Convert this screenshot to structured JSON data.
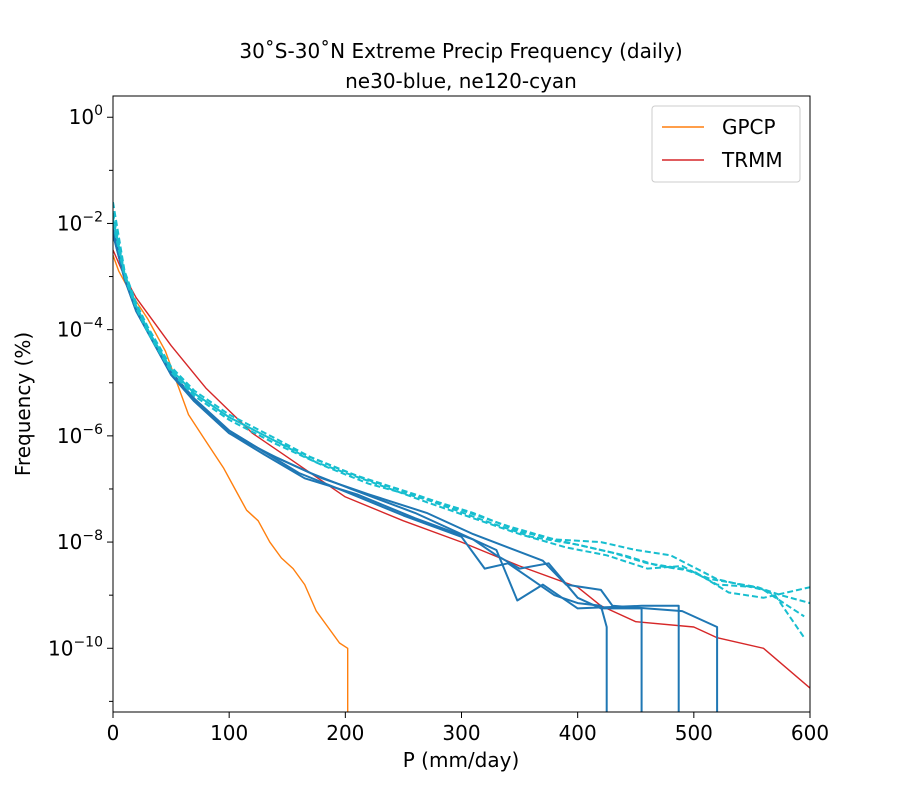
{
  "chart_data": {
    "type": "line",
    "title": "30˚S-30˚N Extreme Precip Frequency (daily)",
    "subtitle": "ne30-blue, ne120-cyan",
    "xlabel": "P (mm/day)",
    "ylabel": "Frequency (%)",
    "xlim": [
      0,
      600
    ],
    "ylim_exponent": [
      -11.2,
      0.4
    ],
    "yscale": "log",
    "x_ticks": [
      "0",
      "100",
      "200",
      "300",
      "400",
      "500",
      "600"
    ],
    "y_ticks": [
      {
        "base": "10",
        "exp": "0",
        "value": 0
      },
      {
        "base": "10",
        "exp": "−2",
        "value": -2
      },
      {
        "base": "10",
        "exp": "−4",
        "value": -4
      },
      {
        "base": "10",
        "exp": "−6",
        "value": -6
      },
      {
        "base": "10",
        "exp": "−8",
        "value": -8
      },
      {
        "base": "10",
        "exp": "−10",
        "value": -10
      }
    ],
    "legend": {
      "position": "top-right",
      "entries": [
        {
          "label": "GPCP",
          "color": "#ff7f0e"
        },
        {
          "label": "TRMM",
          "color": "#d62728"
        }
      ]
    },
    "series": [
      {
        "name": "GPCP",
        "color": "#ff7f0e",
        "style": "solid",
        "points": [
          [
            0,
            -2.6
          ],
          [
            5,
            -2.9
          ],
          [
            15,
            -3.3
          ],
          [
            30,
            -3.8
          ],
          [
            45,
            -4.4
          ],
          [
            55,
            -5.0
          ],
          [
            65,
            -5.6
          ],
          [
            80,
            -6.1
          ],
          [
            95,
            -6.6
          ],
          [
            105,
            -7.0
          ],
          [
            115,
            -7.4
          ],
          [
            125,
            -7.6
          ],
          [
            135,
            -8.0
          ],
          [
            145,
            -8.3
          ],
          [
            155,
            -8.5
          ],
          [
            165,
            -8.8
          ],
          [
            175,
            -9.3
          ],
          [
            185,
            -9.6
          ],
          [
            195,
            -9.9
          ],
          [
            202,
            -10.0
          ],
          [
            202,
            -11.2
          ]
        ]
      },
      {
        "name": "TRMM",
        "color": "#d62728",
        "style": "solid",
        "points": [
          [
            0,
            -2.5
          ],
          [
            10,
            -3.0
          ],
          [
            20,
            -3.4
          ],
          [
            30,
            -3.7
          ],
          [
            50,
            -4.3
          ],
          [
            80,
            -5.1
          ],
          [
            120,
            -5.95
          ],
          [
            150,
            -6.4
          ],
          [
            200,
            -7.15
          ],
          [
            250,
            -7.6
          ],
          [
            300,
            -8.0
          ],
          [
            350,
            -8.45
          ],
          [
            400,
            -8.85
          ],
          [
            420,
            -9.2
          ],
          [
            450,
            -9.5
          ],
          [
            500,
            -9.6
          ],
          [
            520,
            -9.8
          ],
          [
            560,
            -10.0
          ],
          [
            600,
            -10.75
          ]
        ]
      },
      {
        "name": "",
        "color": "#1f77b4",
        "style": "solid",
        "points": [
          [
            0,
            -2.1
          ],
          [
            10,
            -3.0
          ],
          [
            20,
            -3.6
          ],
          [
            30,
            -4.0
          ],
          [
            50,
            -4.8
          ],
          [
            70,
            -5.3
          ],
          [
            100,
            -5.9
          ],
          [
            130,
            -6.3
          ],
          [
            160,
            -6.7
          ],
          [
            200,
            -7.05
          ],
          [
            250,
            -7.5
          ],
          [
            300,
            -7.9
          ],
          [
            320,
            -8.5
          ],
          [
            340,
            -8.4
          ],
          [
            360,
            -8.7
          ],
          [
            380,
            -9.0
          ],
          [
            400,
            -9.15
          ],
          [
            420,
            -9.2
          ],
          [
            425,
            -9.6
          ],
          [
            425,
            -11.2
          ]
        ]
      },
      {
        "name": "",
        "color": "#1f77b4",
        "style": "solid",
        "points": [
          [
            0,
            -2.2
          ],
          [
            10,
            -3.05
          ],
          [
            20,
            -3.65
          ],
          [
            30,
            -4.05
          ],
          [
            50,
            -4.85
          ],
          [
            70,
            -5.35
          ],
          [
            100,
            -5.95
          ],
          [
            130,
            -6.35
          ],
          [
            165,
            -6.8
          ],
          [
            210,
            -7.1
          ],
          [
            260,
            -7.55
          ],
          [
            310,
            -7.95
          ],
          [
            330,
            -8.25
          ],
          [
            350,
            -8.5
          ],
          [
            375,
            -8.4
          ],
          [
            400,
            -9.05
          ],
          [
            420,
            -9.25
          ],
          [
            455,
            -9.25
          ],
          [
            455,
            -11.2
          ]
        ]
      },
      {
        "name": "",
        "color": "#1f77b4",
        "style": "solid",
        "points": [
          [
            0,
            -2.15
          ],
          [
            10,
            -3.0
          ],
          [
            20,
            -3.6
          ],
          [
            30,
            -4.0
          ],
          [
            50,
            -4.8
          ],
          [
            70,
            -5.3
          ],
          [
            100,
            -5.9
          ],
          [
            130,
            -6.3
          ],
          [
            170,
            -6.7
          ],
          [
            205,
            -7.0
          ],
          [
            260,
            -7.45
          ],
          [
            300,
            -7.85
          ],
          [
            330,
            -8.15
          ],
          [
            348,
            -9.1
          ],
          [
            370,
            -8.8
          ],
          [
            400,
            -9.25
          ],
          [
            455,
            -9.2
          ],
          [
            487,
            -9.2
          ],
          [
            487,
            -11.2
          ]
        ]
      },
      {
        "name": "",
        "color": "#1f77b4",
        "style": "solid",
        "points": [
          [
            0,
            -2.2
          ],
          [
            10,
            -3.05
          ],
          [
            20,
            -3.65
          ],
          [
            30,
            -4.05
          ],
          [
            50,
            -4.85
          ],
          [
            70,
            -5.35
          ],
          [
            100,
            -5.95
          ],
          [
            140,
            -6.4
          ],
          [
            180,
            -6.8
          ],
          [
            220,
            -7.1
          ],
          [
            270,
            -7.45
          ],
          [
            310,
            -7.85
          ],
          [
            340,
            -8.1
          ],
          [
            370,
            -8.35
          ],
          [
            390,
            -8.8
          ],
          [
            420,
            -8.9
          ],
          [
            430,
            -9.2
          ],
          [
            490,
            -9.3
          ],
          [
            520,
            -9.6
          ],
          [
            520,
            -11.2
          ]
        ]
      },
      {
        "name": "",
        "color": "#17becf",
        "style": "dashed",
        "points": [
          [
            0,
            -1.6
          ],
          [
            10,
            -2.9
          ],
          [
            20,
            -3.5
          ],
          [
            30,
            -3.95
          ],
          [
            50,
            -4.7
          ],
          [
            70,
            -5.15
          ],
          [
            100,
            -5.6
          ],
          [
            140,
            -6.05
          ],
          [
            170,
            -6.4
          ],
          [
            210,
            -6.75
          ],
          [
            260,
            -7.1
          ],
          [
            300,
            -7.4
          ],
          [
            340,
            -7.7
          ],
          [
            380,
            -7.95
          ],
          [
            420,
            -8.0
          ],
          [
            450,
            -8.15
          ],
          [
            480,
            -8.25
          ],
          [
            520,
            -8.7
          ],
          [
            560,
            -8.9
          ],
          [
            595,
            -9.4
          ]
        ]
      },
      {
        "name": "",
        "color": "#17becf",
        "style": "dashed",
        "points": [
          [
            0,
            -1.9
          ],
          [
            10,
            -2.95
          ],
          [
            20,
            -3.55
          ],
          [
            30,
            -4.0
          ],
          [
            50,
            -4.75
          ],
          [
            70,
            -5.2
          ],
          [
            100,
            -5.65
          ],
          [
            140,
            -6.1
          ],
          [
            175,
            -6.5
          ],
          [
            220,
            -6.85
          ],
          [
            270,
            -7.25
          ],
          [
            310,
            -7.55
          ],
          [
            350,
            -7.85
          ],
          [
            390,
            -8.1
          ],
          [
            425,
            -8.25
          ],
          [
            460,
            -8.5
          ],
          [
            490,
            -8.45
          ],
          [
            520,
            -8.8
          ],
          [
            555,
            -8.85
          ],
          [
            570,
            -9.0
          ],
          [
            595,
            -9.8
          ]
        ]
      },
      {
        "name": "",
        "color": "#17becf",
        "style": "dashed",
        "points": [
          [
            0,
            -2.0
          ],
          [
            10,
            -3.0
          ],
          [
            20,
            -3.6
          ],
          [
            30,
            -4.05
          ],
          [
            50,
            -4.8
          ],
          [
            70,
            -5.25
          ],
          [
            100,
            -5.7
          ],
          [
            140,
            -6.15
          ],
          [
            180,
            -6.55
          ],
          [
            220,
            -6.9
          ],
          [
            270,
            -7.2
          ],
          [
            320,
            -7.6
          ],
          [
            360,
            -7.9
          ],
          [
            400,
            -8.05
          ],
          [
            440,
            -8.25
          ],
          [
            470,
            -8.45
          ],
          [
            500,
            -8.55
          ],
          [
            530,
            -8.95
          ],
          [
            560,
            -9.05
          ],
          [
            600,
            -8.85
          ]
        ]
      },
      {
        "name": "",
        "color": "#17becf",
        "style": "dashed",
        "points": [
          [
            0,
            -1.8
          ],
          [
            10,
            -2.95
          ],
          [
            20,
            -3.55
          ],
          [
            30,
            -4.0
          ],
          [
            50,
            -4.75
          ],
          [
            70,
            -5.2
          ],
          [
            100,
            -5.65
          ],
          [
            140,
            -6.1
          ],
          [
            175,
            -6.45
          ],
          [
            215,
            -6.8
          ],
          [
            265,
            -7.15
          ],
          [
            310,
            -7.45
          ],
          [
            350,
            -7.8
          ],
          [
            390,
            -8.0
          ],
          [
            430,
            -8.2
          ],
          [
            460,
            -8.4
          ],
          [
            490,
            -8.5
          ],
          [
            515,
            -8.7
          ],
          [
            555,
            -8.85
          ],
          [
            575,
            -9.0
          ],
          [
            600,
            -9.15
          ]
        ]
      }
    ]
  }
}
